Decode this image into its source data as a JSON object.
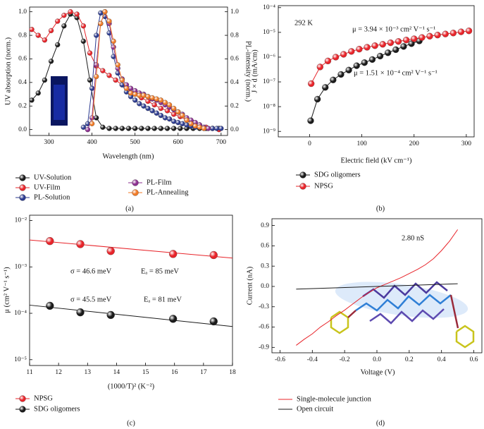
{
  "chart_data": [
    {
      "type": "scatter",
      "panel_label": "(a)",
      "xlabel": "Wavelength (nm)",
      "ylabel": "UV absorption (norm.)",
      "y2label": "PL-intensity (norm.)",
      "lines": true,
      "markers": true,
      "ylog": false,
      "xlim": [
        255,
        715
      ],
      "xticks": [
        300,
        400,
        500,
        600,
        700
      ],
      "ylim": [
        -0.05,
        1.04
      ],
      "yticks": [
        {
          "value": 0,
          "label": "0.0"
        },
        {
          "value": 0.2,
          "label": "0.2"
        },
        {
          "value": 0.4,
          "label": "0.4"
        },
        {
          "value": 0.6,
          "label": "0.6"
        },
        {
          "value": 0.8,
          "label": "0.8"
        },
        {
          "value": 1,
          "label": "1.0"
        }
      ],
      "y2lim": [
        -0.05,
        1.04
      ],
      "y2ticks": [
        {
          "value": 0,
          "label": "0.0"
        },
        {
          "value": 0.2,
          "label": "0.2"
        },
        {
          "value": 0.4,
          "label": "0.4"
        },
        {
          "value": 0.6,
          "label": "0.6"
        },
        {
          "value": 0.8,
          "label": "0.8"
        },
        {
          "value": 1,
          "label": "1.0"
        }
      ],
      "series": [
        {
          "name": "UV-Solution",
          "color": "#1a1a1a",
          "x": [
            260,
            275,
            290,
            305,
            320,
            335,
            350,
            365,
            380,
            395,
            410,
            425,
            440,
            455,
            470,
            485,
            500,
            515,
            530,
            545,
            560,
            575,
            590,
            605,
            620,
            635,
            650,
            665,
            680,
            695
          ],
          "values": [
            0.25,
            0.31,
            0.42,
            0.58,
            0.72,
            0.88,
            0.98,
            0.95,
            0.75,
            0.42,
            0.1,
            0.02,
            0.01,
            0.01,
            0.01,
            0.01,
            0.01,
            0.01,
            0.01,
            0.01,
            0.01,
            0.01,
            0.01,
            0.01,
            0.01,
            0.01,
            0.01,
            0.01,
            0.01,
            0.01
          ]
        },
        {
          "name": "UV-Film",
          "color": "#e8242a",
          "x": [
            260,
            275,
            290,
            305,
            320,
            335,
            350,
            365,
            380,
            395,
            410,
            425,
            440,
            455,
            470,
            485,
            500,
            515,
            530,
            545,
            560,
            575,
            590,
            605,
            620,
            635,
            650,
            665,
            680,
            695
          ],
          "values": [
            0.85,
            0.8,
            0.76,
            0.84,
            0.92,
            0.97,
            1.0,
            0.98,
            0.88,
            0.65,
            0.54,
            0.5,
            0.46,
            0.42,
            0.38,
            0.34,
            0.31,
            0.27,
            0.24,
            0.21,
            0.18,
            0.16,
            0.13,
            0.11,
            0.08,
            0.06,
            0.04,
            0.02,
            0.01,
            0.0
          ]
        },
        {
          "name": "PL-Solution",
          "color": "#2b3a8f",
          "axis": "y2",
          "x": [
            380,
            390,
            400,
            410,
            420,
            430,
            440,
            450,
            460,
            470,
            480,
            490,
            500,
            510,
            520,
            530,
            540,
            550,
            560,
            570,
            580,
            590,
            600,
            610,
            620,
            630,
            640,
            650,
            660,
            670,
            680,
            690,
            700
          ],
          "values": [
            0.02,
            0.05,
            0.35,
            0.8,
            0.99,
            0.96,
            0.82,
            0.62,
            0.48,
            0.38,
            0.32,
            0.28,
            0.25,
            0.22,
            0.2,
            0.18,
            0.16,
            0.14,
            0.12,
            0.1,
            0.09,
            0.07,
            0.06,
            0.05,
            0.04,
            0.03,
            0.02,
            0.02,
            0.01,
            0.01,
            0.01,
            0.01,
            0.01
          ]
        },
        {
          "name": "PL-Film",
          "color": "#8b2f8f",
          "axis": "y2",
          "x": [
            390,
            400,
            410,
            420,
            430,
            440,
            450,
            460,
            470,
            480,
            490,
            500,
            510,
            520,
            530,
            540,
            550,
            560,
            570,
            580,
            590,
            600,
            610,
            620,
            630,
            640,
            650,
            660,
            670
          ],
          "values": [
            0,
            0.1,
            0.55,
            0.9,
            1.0,
            0.9,
            0.7,
            0.52,
            0.43,
            0.38,
            0.35,
            0.33,
            0.31,
            0.3,
            0.28,
            0.26,
            0.25,
            0.23,
            0.21,
            0.19,
            0.17,
            0.15,
            0.13,
            0.1,
            0.08,
            0.06,
            0.04,
            0.02,
            0.01
          ]
        },
        {
          "name": "PL-Annealing",
          "color": "#f07a26",
          "axis": "y2",
          "x": [
            400,
            410,
            420,
            430,
            440,
            450,
            460,
            470,
            480,
            490,
            500,
            510,
            520,
            530,
            540,
            550,
            560,
            570,
            580,
            590,
            600,
            610,
            620,
            630,
            640,
            650,
            660
          ],
          "values": [
            0.05,
            0.45,
            0.9,
            1.0,
            0.92,
            0.75,
            0.55,
            0.42,
            0.35,
            0.31,
            0.3,
            0.29,
            0.29,
            0.28,
            0.27,
            0.26,
            0.25,
            0.23,
            0.21,
            0.18,
            0.15,
            0.12,
            0.08,
            0.05,
            0.03,
            0.02,
            0.01
          ]
        }
      ]
    },
    {
      "type": "scatter",
      "panel_label": "(b)",
      "xlabel": "Electric field (kV cm⁻¹)",
      "ylabel": "J × d (mA/cm)",
      "lines": true,
      "markers": true,
      "ylog": true,
      "xlim": [
        -60,
        315
      ],
      "xticks": [
        0,
        100,
        200,
        300
      ],
      "ylim": [
        6e-10,
        0.00012
      ],
      "yticks": [
        {
          "value": 1e-09,
          "label": "10⁻⁹"
        },
        {
          "value": 1e-08,
          "label": "10⁻⁸"
        },
        {
          "value": 1e-07,
          "label": "10⁻⁷"
        },
        {
          "value": 1e-06,
          "label": "10⁻⁶"
        },
        {
          "value": 1e-05,
          "label": "10⁻⁵"
        },
        {
          "value": 0.0001,
          "label": "10⁻⁴"
        }
      ],
      "annotations": [
        {
          "text": "292 K",
          "color": "#111"
        },
        {
          "text": "μ = 3.94 × 10⁻³ cm² V⁻¹ s⁻¹",
          "color": "#e8242a"
        },
        {
          "text": "μ = 1.51 × 10⁻⁴ cm² V⁻¹ s⁻¹",
          "color": "#111"
        }
      ],
      "series": [
        {
          "name": "SDG oligomers",
          "color": "#1a1a1a",
          "x": [
            2,
            15,
            30,
            45,
            60,
            75,
            90,
            105,
            120,
            135,
            150,
            165,
            180,
            195,
            210
          ],
          "values": [
            2.7e-09,
            2e-08,
            6e-08,
            1.2e-07,
            2e-07,
            3e-07,
            4.5e-07,
            6e-07,
            8e-07,
            1.1e-06,
            1.5e-06,
            2e-06,
            2.7e-06,
            3.5e-06,
            4.5e-06
          ]
        },
        {
          "name": "NPSG",
          "color": "#e8242a",
          "x": [
            3,
            20,
            35,
            50,
            65,
            80,
            95,
            110,
            125,
            140,
            155,
            170,
            185,
            200,
            215,
            230,
            245,
            260,
            275,
            290,
            305
          ],
          "values": [
            8.5e-08,
            4e-07,
            7e-07,
            1e-06,
            1.3e-06,
            1.7e-06,
            2.1e-06,
            2.5e-06,
            2.9e-06,
            3.3e-06,
            3.8e-06,
            4.3e-06,
            4.9e-06,
            5.5e-06,
            6.2e-06,
            7e-06,
            7.8e-06,
            8.6e-06,
            9.4e-06,
            1.05e-05,
            1.15e-05
          ]
        }
      ]
    },
    {
      "type": "scatter",
      "panel_label": "(c)",
      "xlabel": "(1000/T)² (K⁻²)",
      "ylabel": "μ (cm² V⁻¹ s⁻¹)",
      "lines": false,
      "markers": true,
      "ylog": true,
      "xlim": [
        11,
        18
      ],
      "xticks": [
        11,
        12,
        13,
        14,
        15,
        16,
        17,
        18
      ],
      "ylim": [
        7.5e-06,
        0.013
      ],
      "yticks": [
        {
          "value": 1e-05,
          "label": "10⁻⁵"
        },
        {
          "value": 0.0001,
          "label": "10⁻⁴"
        },
        {
          "value": 0.001,
          "label": "10⁻³"
        },
        {
          "value": 0.01,
          "label": "10⁻²"
        }
      ],
      "annotations": [
        {
          "text": "σ = 46.6 meV",
          "color": "#e8242a"
        },
        {
          "text": "Eₐ = 85 meV",
          "color": "#e8242a"
        },
        {
          "text": "σ = 45.5 meV",
          "color": "#111"
        },
        {
          "text": "Eₐ = 81 meV",
          "color": "#111"
        }
      ],
      "series": [
        {
          "name": "NPSG",
          "color": "#e8242a",
          "x": [
            11.7,
            12.75,
            13.8,
            15.95,
            17.35
          ],
          "values": [
            0.0036,
            0.0031,
            0.0022,
            0.0019,
            0.0018
          ]
        },
        {
          "name": "SDG oligomers",
          "color": "#1a1a1a",
          "x": [
            11.7,
            12.75,
            13.8,
            15.95,
            17.35
          ],
          "values": [
            0.000145,
            0.000105,
            9.2e-05,
            7.6e-05,
            6.7e-05
          ]
        }
      ],
      "fits": [
        {
          "color": "#e8242a",
          "x": [
            11,
            18
          ],
          "values": [
            0.0038,
            0.00155
          ]
        },
        {
          "color": "#1a1a1a",
          "x": [
            11,
            18
          ],
          "values": [
            0.00015,
            5.2e-05
          ]
        }
      ]
    },
    {
      "type": "line",
      "panel_label": "(d)",
      "xlabel": "Voltage (V)",
      "ylabel": "Current (nA)",
      "lines": true,
      "markers": false,
      "ylog": false,
      "xlim": [
        -0.65,
        0.65
      ],
      "xticks": [
        -0.6,
        -0.4,
        -0.2,
        {
          "value": 0,
          "label": "0.0"
        },
        0.2,
        0.4,
        0.6
      ],
      "ylim": [
        -0.98,
        1.0
      ],
      "yticks": [
        0.9,
        0.6,
        0.3,
        {
          "value": 0,
          "label": "0.0"
        },
        -0.3,
        -0.6,
        -0.9
      ],
      "annotations": [
        {
          "text": "2.80 nS",
          "color": "#111"
        }
      ],
      "series": [
        {
          "name": "Single-molecule junction",
          "color": "#e8242a",
          "x": [
            -0.5,
            -0.45,
            -0.4,
            -0.35,
            -0.3,
            -0.25,
            -0.2,
            -0.15,
            -0.1,
            -0.05,
            0,
            0.05,
            0.1,
            0.15,
            0.2,
            0.25,
            0.3,
            0.35,
            0.4,
            0.45,
            0.5
          ],
          "values": [
            -0.87,
            -0.78,
            -0.7,
            -0.6,
            -0.52,
            -0.43,
            -0.35,
            -0.26,
            -0.17,
            -0.09,
            -0.02,
            0.03,
            0.08,
            0.13,
            0.19,
            0.25,
            0.32,
            0.41,
            0.53,
            0.67,
            0.84
          ]
        },
        {
          "name": "Open circuit",
          "color": "#1a1a1a",
          "x": [
            -0.5,
            0.5
          ],
          "values": [
            -0.04,
            0.04
          ]
        }
      ]
    }
  ]
}
